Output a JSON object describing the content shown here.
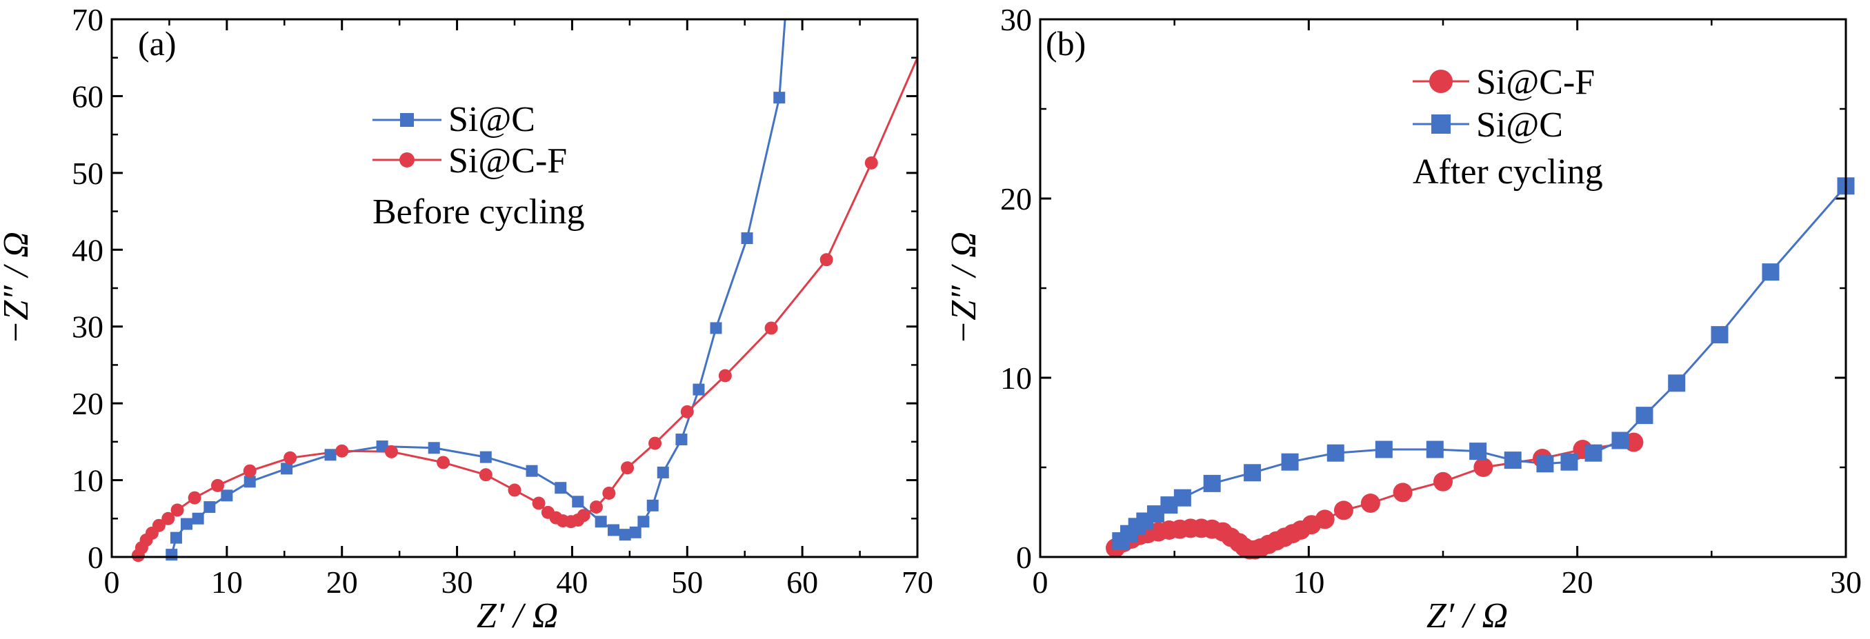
{
  "chart_data": [
    {
      "type": "line",
      "panel_label": "(a)",
      "annotation": "Before cycling",
      "xlabel": "Z′ / Ω",
      "ylabel": "−Z″ / Ω",
      "xlim": [
        0,
        70
      ],
      "ylim": [
        0,
        70
      ],
      "xticks": [
        "0",
        "10",
        "20",
        "30",
        "40",
        "50",
        "60",
        "70"
      ],
      "yticks": [
        "0",
        "10",
        "20",
        "30",
        "40",
        "50",
        "60",
        "70"
      ],
      "legend_position": "upper-center",
      "series": [
        {
          "name": "Si@C",
          "color": "#4472c4",
          "marker": "square",
          "points": [
            [
              5.2,
              0.3
            ],
            [
              5.6,
              2.5
            ],
            [
              6.5,
              4.3
            ],
            [
              7.5,
              5.0
            ],
            [
              8.5,
              6.5
            ],
            [
              10.0,
              8.0
            ],
            [
              12.0,
              9.8
            ],
            [
              15.2,
              11.5
            ],
            [
              19.0,
              13.3
            ],
            [
              23.5,
              14.4
            ],
            [
              28.0,
              14.2
            ],
            [
              32.5,
              13.0
            ],
            [
              36.5,
              11.2
            ],
            [
              39.0,
              9.0
            ],
            [
              40.5,
              7.2
            ],
            [
              41.0,
              6.5
            ],
            [
              42.5,
              4.6
            ],
            [
              43.6,
              3.5
            ],
            [
              44.6,
              2.9
            ],
            [
              45.5,
              3.2
            ],
            [
              46.2,
              4.6
            ],
            [
              47.0,
              6.7
            ],
            [
              47.9,
              11.0
            ],
            [
              49.5,
              15.3
            ],
            [
              51.0,
              21.8
            ],
            [
              52.5,
              29.8
            ],
            [
              55.2,
              41.5
            ],
            [
              58.0,
              59.8
            ],
            [
              58.5,
              70.0
            ]
          ],
          "marker_points": [
            [
              5.2,
              0.3
            ],
            [
              5.6,
              2.5
            ],
            [
              6.5,
              4.3
            ],
            [
              7.5,
              5.0
            ],
            [
              8.5,
              6.5
            ],
            [
              10.0,
              8.0
            ],
            [
              12.0,
              9.8
            ],
            [
              15.2,
              11.5
            ],
            [
              19.0,
              13.3
            ],
            [
              23.5,
              14.4
            ],
            [
              28.0,
              14.2
            ],
            [
              32.5,
              13.0
            ],
            [
              36.5,
              11.2
            ],
            [
              39.0,
              9.0
            ],
            [
              40.5,
              7.2
            ],
            [
              42.5,
              4.6
            ],
            [
              43.6,
              3.5
            ],
            [
              44.6,
              2.9
            ],
            [
              45.5,
              3.2
            ],
            [
              46.2,
              4.6
            ],
            [
              47.0,
              6.7
            ],
            [
              47.9,
              11.0
            ],
            [
              49.5,
              15.3
            ],
            [
              51.0,
              21.8
            ],
            [
              52.5,
              29.8
            ],
            [
              55.2,
              41.5
            ],
            [
              58.0,
              59.8
            ]
          ]
        },
        {
          "name": "Si@C-F",
          "color": "#e03c4a",
          "marker": "circle",
          "points": [
            [
              2.3,
              0.2
            ],
            [
              2.6,
              1.2
            ],
            [
              3.0,
              2.2
            ],
            [
              3.5,
              3.1
            ],
            [
              4.1,
              4.1
            ],
            [
              4.9,
              5.0
            ],
            [
              5.7,
              6.1
            ],
            [
              7.2,
              7.7
            ],
            [
              9.2,
              9.3
            ],
            [
              12.0,
              11.2
            ],
            [
              15.5,
              12.9
            ],
            [
              20.0,
              13.8
            ],
            [
              24.3,
              13.7
            ],
            [
              28.8,
              12.3
            ],
            [
              32.5,
              10.7
            ],
            [
              35.0,
              8.7
            ],
            [
              37.1,
              7.0
            ],
            [
              37.9,
              5.8
            ],
            [
              38.6,
              5.1
            ],
            [
              39.2,
              4.7
            ],
            [
              39.9,
              4.6
            ],
            [
              40.5,
              4.8
            ],
            [
              41.0,
              5.4
            ],
            [
              42.1,
              6.5
            ],
            [
              43.2,
              8.3
            ],
            [
              44.8,
              11.6
            ],
            [
              47.2,
              14.8
            ],
            [
              50.0,
              18.9
            ],
            [
              53.3,
              23.6
            ],
            [
              57.3,
              29.8
            ],
            [
              62.1,
              38.7
            ],
            [
              66.0,
              51.3
            ],
            [
              70.0,
              65.0
            ]
          ],
          "marker_points": [
            [
              2.3,
              0.2
            ],
            [
              2.6,
              1.2
            ],
            [
              3.0,
              2.2
            ],
            [
              3.5,
              3.1
            ],
            [
              4.1,
              4.1
            ],
            [
              4.9,
              5.0
            ],
            [
              5.7,
              6.1
            ],
            [
              7.2,
              7.7
            ],
            [
              9.2,
              9.3
            ],
            [
              12.0,
              11.2
            ],
            [
              15.5,
              12.9
            ],
            [
              20.0,
              13.8
            ],
            [
              24.3,
              13.7
            ],
            [
              28.8,
              12.3
            ],
            [
              32.5,
              10.7
            ],
            [
              35.0,
              8.7
            ],
            [
              37.1,
              7.0
            ],
            [
              37.9,
              5.8
            ],
            [
              38.6,
              5.1
            ],
            [
              39.2,
              4.7
            ],
            [
              39.9,
              4.6
            ],
            [
              40.5,
              4.8
            ],
            [
              41.0,
              5.4
            ],
            [
              42.1,
              6.5
            ],
            [
              43.2,
              8.3
            ],
            [
              44.8,
              11.6
            ],
            [
              47.2,
              14.8
            ],
            [
              50.0,
              18.9
            ],
            [
              53.3,
              23.6
            ],
            [
              57.3,
              29.8
            ],
            [
              62.1,
              38.7
            ],
            [
              66.0,
              51.3
            ]
          ]
        }
      ]
    },
    {
      "type": "line",
      "panel_label": "(b)",
      "annotation": "After cycling",
      "xlabel": "Z′ / Ω",
      "ylabel": "−Z″ / Ω",
      "xlim": [
        0,
        30
      ],
      "ylim": [
        0,
        30
      ],
      "xticks": [
        "0",
        "10",
        "20",
        "30"
      ],
      "yticks": [
        "0",
        "10",
        "20",
        "30"
      ],
      "legend_position": "upper-center",
      "series": [
        {
          "name": "Si@C-F",
          "color": "#e03c4a",
          "marker": "circle",
          "points": [
            [
              2.8,
              0.5
            ],
            [
              3.1,
              0.8
            ],
            [
              3.4,
              1.0
            ],
            [
              3.7,
              1.2
            ],
            [
              4.0,
              1.3
            ],
            [
              4.4,
              1.4
            ],
            [
              4.8,
              1.5
            ],
            [
              5.2,
              1.55
            ],
            [
              5.6,
              1.6
            ],
            [
              6.0,
              1.6
            ],
            [
              6.4,
              1.55
            ],
            [
              6.8,
              1.4
            ],
            [
              7.1,
              1.1
            ],
            [
              7.4,
              0.8
            ],
            [
              7.6,
              0.55
            ],
            [
              7.8,
              0.4
            ],
            [
              8.0,
              0.4
            ],
            [
              8.2,
              0.5
            ],
            [
              8.5,
              0.7
            ],
            [
              8.8,
              0.9
            ],
            [
              9.1,
              1.1
            ],
            [
              9.4,
              1.3
            ],
            [
              9.7,
              1.5
            ],
            [
              10.1,
              1.8
            ],
            [
              10.6,
              2.1
            ],
            [
              11.3,
              2.6
            ],
            [
              12.3,
              3.0
            ],
            [
              13.5,
              3.6
            ],
            [
              15.0,
              4.2
            ],
            [
              16.5,
              5.0
            ],
            [
              18.7,
              5.5
            ],
            [
              20.2,
              6.0
            ],
            [
              22.1,
              6.4
            ]
          ],
          "marker_points": [
            [
              2.8,
              0.5
            ],
            [
              3.1,
              0.8
            ],
            [
              3.4,
              1.0
            ],
            [
              3.7,
              1.2
            ],
            [
              4.0,
              1.3
            ],
            [
              4.4,
              1.4
            ],
            [
              4.8,
              1.5
            ],
            [
              5.2,
              1.55
            ],
            [
              5.6,
              1.6
            ],
            [
              6.0,
              1.6
            ],
            [
              6.4,
              1.55
            ],
            [
              6.8,
              1.4
            ],
            [
              7.1,
              1.1
            ],
            [
              7.4,
              0.8
            ],
            [
              7.6,
              0.55
            ],
            [
              7.8,
              0.4
            ],
            [
              8.0,
              0.4
            ],
            [
              8.2,
              0.5
            ],
            [
              8.5,
              0.7
            ],
            [
              8.8,
              0.9
            ],
            [
              9.1,
              1.1
            ],
            [
              9.4,
              1.3
            ],
            [
              9.7,
              1.5
            ],
            [
              10.1,
              1.8
            ],
            [
              10.6,
              2.1
            ],
            [
              11.3,
              2.6
            ],
            [
              12.3,
              3.0
            ],
            [
              13.5,
              3.6
            ],
            [
              15.0,
              4.2
            ],
            [
              16.5,
              5.0
            ],
            [
              18.7,
              5.5
            ],
            [
              20.2,
              6.0
            ],
            [
              22.1,
              6.4
            ]
          ]
        },
        {
          "name": "Si@C",
          "color": "#4472c4",
          "marker": "square",
          "points": [
            [
              3.0,
              0.9
            ],
            [
              3.3,
              1.3
            ],
            [
              3.6,
              1.7
            ],
            [
              3.9,
              2.0
            ],
            [
              4.3,
              2.4
            ],
            [
              4.8,
              2.9
            ],
            [
              5.3,
              3.3
            ],
            [
              6.4,
              4.1
            ],
            [
              7.9,
              4.7
            ],
            [
              9.3,
              5.3
            ],
            [
              11.0,
              5.8
            ],
            [
              12.8,
              6.0
            ],
            [
              14.7,
              6.0
            ],
            [
              16.3,
              5.9
            ],
            [
              17.6,
              5.4
            ],
            [
              18.8,
              5.2
            ],
            [
              19.7,
              5.3
            ],
            [
              20.6,
              5.8
            ],
            [
              21.6,
              6.5
            ],
            [
              22.5,
              7.9
            ],
            [
              23.7,
              9.7
            ],
            [
              25.3,
              12.4
            ],
            [
              27.2,
              15.9
            ],
            [
              30.0,
              20.7
            ]
          ],
          "marker_points": [
            [
              3.0,
              0.9
            ],
            [
              3.3,
              1.3
            ],
            [
              3.6,
              1.7
            ],
            [
              3.9,
              2.0
            ],
            [
              4.3,
              2.4
            ],
            [
              4.8,
              2.9
            ],
            [
              5.3,
              3.3
            ],
            [
              6.4,
              4.1
            ],
            [
              7.9,
              4.7
            ],
            [
              9.3,
              5.3
            ],
            [
              11.0,
              5.8
            ],
            [
              12.8,
              6.0
            ],
            [
              14.7,
              6.0
            ],
            [
              16.3,
              5.9
            ],
            [
              17.6,
              5.4
            ],
            [
              18.8,
              5.2
            ],
            [
              19.7,
              5.3
            ],
            [
              20.6,
              5.8
            ],
            [
              21.6,
              6.5
            ],
            [
              22.5,
              7.9
            ],
            [
              23.7,
              9.7
            ],
            [
              25.3,
              12.4
            ],
            [
              27.2,
              15.9
            ],
            [
              30.0,
              20.7
            ]
          ]
        }
      ]
    }
  ]
}
